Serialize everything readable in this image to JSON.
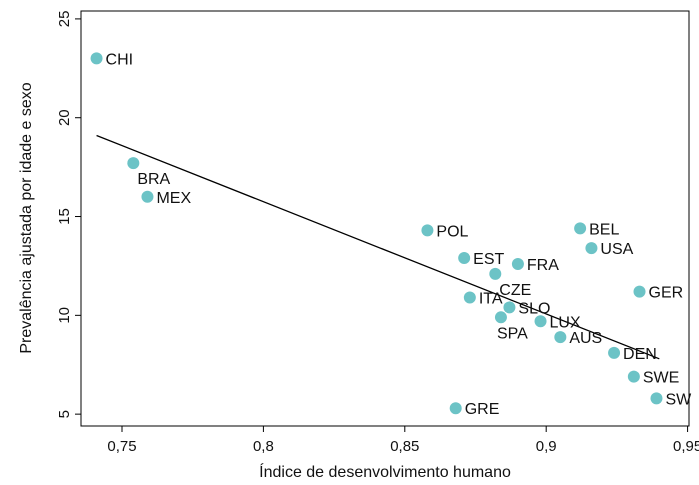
{
  "chart_data": {
    "type": "scatter",
    "title": "",
    "xlabel": "Índice de desenvolvimento humano",
    "ylabel": "Prevalência ajustada por idade e sexo",
    "xlim": [
      0.7355,
      0.9505
    ],
    "ylim": [
      4.4,
      25.4
    ],
    "x_ticks": [
      0.75,
      0.8,
      0.85,
      0.9,
      0.95
    ],
    "x_tick_labels": [
      "0,75",
      "0,8",
      "0,85",
      "0,9",
      "0,95"
    ],
    "y_ticks": [
      5,
      10,
      15,
      20,
      25
    ],
    "y_tick_labels": [
      "5",
      "10",
      "15",
      "20",
      "25"
    ],
    "marker_color": "#6cc3c6",
    "line_color": "#000000",
    "points": [
      {
        "label": "CHI",
        "x": 0.741,
        "y": 23.0,
        "pos": "right"
      },
      {
        "label": "BRA",
        "x": 0.754,
        "y": 17.7,
        "pos": "below-right"
      },
      {
        "label": "MEX",
        "x": 0.759,
        "y": 16.0,
        "pos": "right"
      },
      {
        "label": "POL",
        "x": 0.858,
        "y": 14.3,
        "pos": "right"
      },
      {
        "label": "EST",
        "x": 0.871,
        "y": 12.9,
        "pos": "right"
      },
      {
        "label": "FRA",
        "x": 0.89,
        "y": 12.6,
        "pos": "right"
      },
      {
        "label": "CZE",
        "x": 0.882,
        "y": 12.1,
        "pos": "below-right"
      },
      {
        "label": "ITA",
        "x": 0.873,
        "y": 10.9,
        "pos": "right"
      },
      {
        "label": "SLO",
        "x": 0.887,
        "y": 10.4,
        "pos": "right"
      },
      {
        "label": "SPA",
        "x": 0.884,
        "y": 9.9,
        "pos": "below"
      },
      {
        "label": "LUX",
        "x": 0.898,
        "y": 9.7,
        "pos": "right"
      },
      {
        "label": "AUS",
        "x": 0.905,
        "y": 8.9,
        "pos": "right"
      },
      {
        "label": "BEL",
        "x": 0.912,
        "y": 14.4,
        "pos": "right"
      },
      {
        "label": "USA",
        "x": 0.916,
        "y": 13.4,
        "pos": "right"
      },
      {
        "label": "GER",
        "x": 0.933,
        "y": 11.2,
        "pos": "right"
      },
      {
        "label": "DEN",
        "x": 0.924,
        "y": 8.1,
        "pos": "right"
      },
      {
        "label": "SWE",
        "x": 0.931,
        "y": 6.9,
        "pos": "right"
      },
      {
        "label": "SW",
        "x": 0.939,
        "y": 5.8,
        "pos": "right"
      },
      {
        "label": "GRE",
        "x": 0.868,
        "y": 5.3,
        "pos": "right"
      }
    ],
    "trend_line": {
      "x": [
        0.741,
        0.94
      ],
      "y": [
        19.1,
        7.8
      ]
    }
  }
}
